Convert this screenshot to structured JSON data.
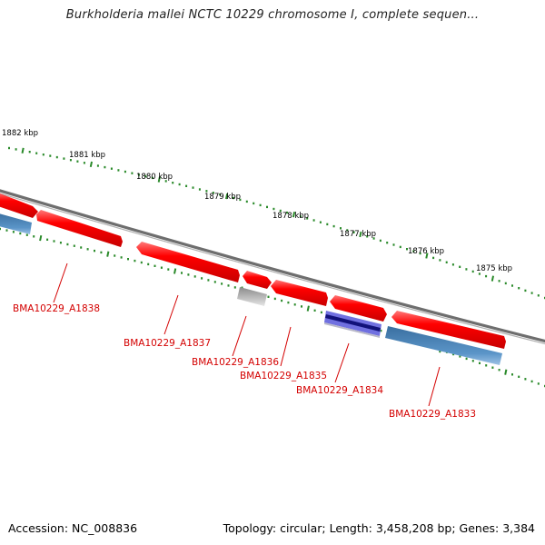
{
  "header": {
    "title": "Burkholderia mallei NCTC 10229 chromosome I, complete sequen..."
  },
  "footer": {
    "accession": "Accession: NC_008836",
    "summary": "Topology: circular; Length: 3,458,208 bp; Genes: 3,384"
  },
  "colors": {
    "forward_feature": "#ff0000",
    "reverse_feature": "#4a88c0",
    "grey_feature": "#b8b8b8",
    "dark_blue_feature": "#12127a",
    "backbone": "#888888",
    "ticks": "#2a8a2a",
    "label": "#d40000"
  },
  "ruler": {
    "tick_labels": [
      "1882 kbp",
      "1881 kbp",
      "1880 kbp",
      "1879 kbp",
      "1878 kbp",
      "1877 kbp",
      "1876 kbp",
      "1875 kbp"
    ]
  },
  "genes": [
    "BMA10229_A1838",
    "BMA10229_A1837",
    "BMA10229_A1836",
    "BMA10229_A1835",
    "BMA10229_A1834",
    "BMA10229_A1833"
  ]
}
